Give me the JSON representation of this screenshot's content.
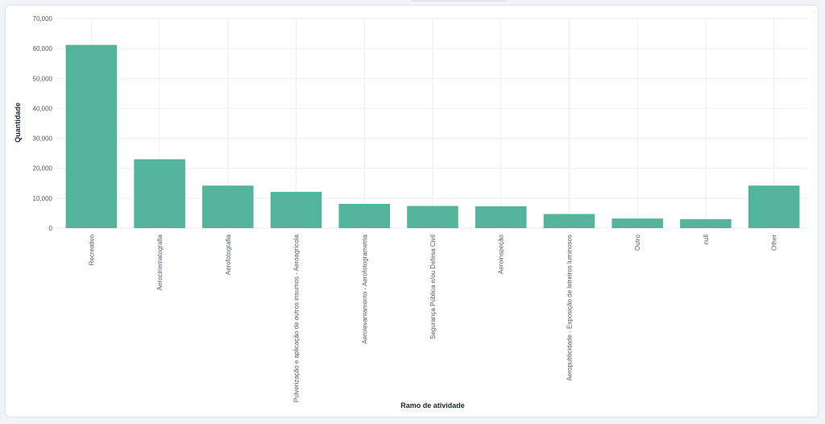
{
  "chart_data": {
    "type": "bar",
    "xlabel": "Ramo de atividade",
    "ylabel": "Quantidade",
    "ylim": [
      0,
      70000
    ],
    "yticks": [
      0,
      10000,
      20000,
      30000,
      40000,
      50000,
      60000,
      70000
    ],
    "ytick_labels": [
      "0",
      "10,000",
      "20,000",
      "30,000",
      "40,000",
      "50,000",
      "60,000",
      "70,000"
    ],
    "grid": true,
    "bar_color": "#52b49a",
    "categories": [
      "Recreativo",
      "Aerocinematografia",
      "Aerofotografia",
      "Pulverização e aplicação de outros insumos - Aeroagrícola",
      "Aerolevantamento - Aerofotogrametria",
      "Segurança Pública e/ou Defesa Civil",
      "Aeroinspeção",
      "Aeropublicidade - Exposição de letreiros luminosos",
      "Outro",
      "null",
      "Other"
    ],
    "values": [
      61200,
      23000,
      14200,
      12100,
      8100,
      7400,
      7300,
      4700,
      3200,
      3000,
      14200
    ]
  }
}
